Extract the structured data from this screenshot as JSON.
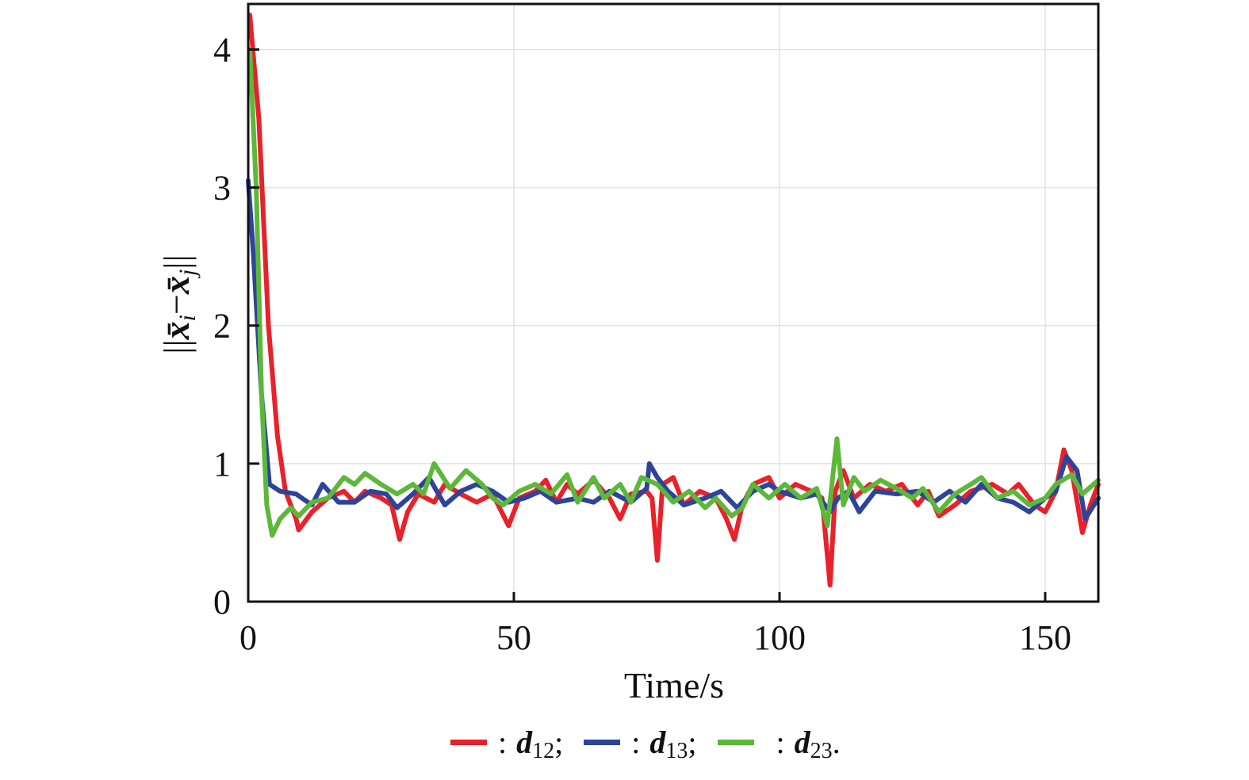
{
  "chart_data": {
    "type": "line",
    "xlabel": "Time/s",
    "ylabel": {
      "prefix": "||",
      "var_i": "x̄",
      "sub_i": "i",
      "minus": "−",
      "var_j": "x̄",
      "sub_j": "j",
      "suffix": "||"
    },
    "xlim": [
      0,
      160
    ],
    "ylim": [
      0,
      4.33
    ],
    "xticks": [
      0,
      50,
      100,
      150
    ],
    "yticks": [
      0,
      1,
      2,
      3,
      4
    ],
    "grid": true,
    "legend_position": "bottom",
    "series": [
      {
        "name": "d12",
        "label": "d",
        "sub": "12",
        "sep": ";",
        "color": "#e8212a",
        "points": [
          [
            0.3,
            4.25
          ],
          [
            2,
            3.5
          ],
          [
            3.8,
            2.0
          ],
          [
            5.5,
            1.2
          ],
          [
            7,
            0.8
          ],
          [
            9,
            0.6
          ],
          [
            9.5,
            0.52
          ],
          [
            12,
            0.65
          ],
          [
            15,
            0.75
          ],
          [
            18,
            0.8
          ],
          [
            20,
            0.72
          ],
          [
            22,
            0.8
          ],
          [
            25,
            0.75
          ],
          [
            27,
            0.7
          ],
          [
            28.5,
            0.45
          ],
          [
            30,
            0.65
          ],
          [
            32,
            0.78
          ],
          [
            35,
            0.72
          ],
          [
            37,
            0.85
          ],
          [
            40,
            0.78
          ],
          [
            43,
            0.72
          ],
          [
            46,
            0.78
          ],
          [
            49,
            0.55
          ],
          [
            51,
            0.75
          ],
          [
            54,
            0.8
          ],
          [
            56,
            0.88
          ],
          [
            58,
            0.72
          ],
          [
            60,
            0.85
          ],
          [
            62,
            0.78
          ],
          [
            65,
            0.88
          ],
          [
            68,
            0.75
          ],
          [
            70,
            0.6
          ],
          [
            72,
            0.78
          ],
          [
            75,
            0.8
          ],
          [
            76,
            0.75
          ],
          [
            77,
            0.3
          ],
          [
            78,
            0.85
          ],
          [
            80,
            0.9
          ],
          [
            82,
            0.7
          ],
          [
            85,
            0.8
          ],
          [
            88,
            0.75
          ],
          [
            90,
            0.6
          ],
          [
            91.5,
            0.45
          ],
          [
            93,
            0.7
          ],
          [
            95,
            0.85
          ],
          [
            98,
            0.9
          ],
          [
            100,
            0.75
          ],
          [
            103,
            0.85
          ],
          [
            106,
            0.8
          ],
          [
            108,
            0.75
          ],
          [
            109.5,
            0.12
          ],
          [
            110.5,
            0.8
          ],
          [
            112,
            0.95
          ],
          [
            114,
            0.75
          ],
          [
            117,
            0.85
          ],
          [
            120,
            0.8
          ],
          [
            123,
            0.85
          ],
          [
            126,
            0.7
          ],
          [
            128,
            0.8
          ],
          [
            130,
            0.62
          ],
          [
            133,
            0.7
          ],
          [
            136,
            0.8
          ],
          [
            140,
            0.85
          ],
          [
            143,
            0.78
          ],
          [
            145,
            0.85
          ],
          [
            148,
            0.7
          ],
          [
            150,
            0.65
          ],
          [
            152,
            0.8
          ],
          [
            153.5,
            1.1
          ],
          [
            155,
            0.95
          ],
          [
            157,
            0.5
          ],
          [
            158.5,
            0.7
          ],
          [
            160,
            0.85
          ]
        ]
      },
      {
        "name": "d13",
        "label": "d",
        "sub": "13",
        "sep": ";",
        "color": "#2d449a",
        "points": [
          [
            0,
            3.05
          ],
          [
            1,
            2.5
          ],
          [
            2.5,
            1.5
          ],
          [
            4,
            0.85
          ],
          [
            6,
            0.8
          ],
          [
            9,
            0.78
          ],
          [
            12,
            0.7
          ],
          [
            14,
            0.85
          ],
          [
            17,
            0.72
          ],
          [
            20,
            0.72
          ],
          [
            23,
            0.8
          ],
          [
            26,
            0.78
          ],
          [
            28,
            0.68
          ],
          [
            31,
            0.78
          ],
          [
            34,
            0.9
          ],
          [
            37,
            0.7
          ],
          [
            40,
            0.8
          ],
          [
            43,
            0.85
          ],
          [
            46,
            0.8
          ],
          [
            49,
            0.72
          ],
          [
            52,
            0.75
          ],
          [
            55,
            0.8
          ],
          [
            58,
            0.72
          ],
          [
            62,
            0.75
          ],
          [
            65,
            0.72
          ],
          [
            68,
            0.8
          ],
          [
            72,
            0.72
          ],
          [
            75,
            0.82
          ],
          [
            75.5,
            1.0
          ],
          [
            77,
            0.9
          ],
          [
            79,
            0.8
          ],
          [
            82,
            0.7
          ],
          [
            86,
            0.75
          ],
          [
            89,
            0.8
          ],
          [
            92,
            0.68
          ],
          [
            95,
            0.8
          ],
          [
            98,
            0.85
          ],
          [
            100,
            0.8
          ],
          [
            104,
            0.75
          ],
          [
            107,
            0.78
          ],
          [
            109.5,
            0.65
          ],
          [
            111,
            0.75
          ],
          [
            113,
            0.8
          ],
          [
            115,
            0.65
          ],
          [
            118,
            0.8
          ],
          [
            122,
            0.78
          ],
          [
            126,
            0.8
          ],
          [
            129,
            0.72
          ],
          [
            132,
            0.8
          ],
          [
            135,
            0.72
          ],
          [
            138,
            0.85
          ],
          [
            141,
            0.75
          ],
          [
            144,
            0.72
          ],
          [
            147,
            0.65
          ],
          [
            150,
            0.75
          ],
          [
            152,
            0.8
          ],
          [
            154,
            1.05
          ],
          [
            156,
            0.95
          ],
          [
            157.5,
            0.6
          ],
          [
            160,
            0.75
          ]
        ]
      },
      {
        "name": "d23",
        "label": "d",
        "sub": "23",
        "sep": ".",
        "color": "#5db83a",
        "points": [
          [
            0.3,
            4.0
          ],
          [
            1.5,
            3.0
          ],
          [
            2.5,
            1.5
          ],
          [
            3.5,
            0.7
          ],
          [
            4.5,
            0.48
          ],
          [
            6,
            0.6
          ],
          [
            8,
            0.68
          ],
          [
            9.5,
            0.62
          ],
          [
            12,
            0.72
          ],
          [
            15,
            0.75
          ],
          [
            18,
            0.9
          ],
          [
            20,
            0.85
          ],
          [
            22,
            0.93
          ],
          [
            25,
            0.85
          ],
          [
            28,
            0.78
          ],
          [
            31,
            0.85
          ],
          [
            33,
            0.78
          ],
          [
            35,
            1.0
          ],
          [
            38,
            0.82
          ],
          [
            41,
            0.95
          ],
          [
            44,
            0.85
          ],
          [
            46,
            0.75
          ],
          [
            48,
            0.7
          ],
          [
            51,
            0.8
          ],
          [
            54,
            0.85
          ],
          [
            57,
            0.78
          ],
          [
            60,
            0.92
          ],
          [
            62,
            0.72
          ],
          [
            65,
            0.9
          ],
          [
            67,
            0.75
          ],
          [
            70,
            0.85
          ],
          [
            72,
            0.72
          ],
          [
            74,
            0.9
          ],
          [
            77,
            0.85
          ],
          [
            80,
            0.72
          ],
          [
            83,
            0.8
          ],
          [
            86,
            0.68
          ],
          [
            88,
            0.75
          ],
          [
            91,
            0.62
          ],
          [
            93,
            0.68
          ],
          [
            95,
            0.85
          ],
          [
            98,
            0.75
          ],
          [
            101,
            0.85
          ],
          [
            104,
            0.75
          ],
          [
            107,
            0.82
          ],
          [
            109,
            0.55
          ],
          [
            110,
            0.9
          ],
          [
            110.8,
            1.18
          ],
          [
            112,
            0.7
          ],
          [
            114,
            0.9
          ],
          [
            116,
            0.8
          ],
          [
            119,
            0.88
          ],
          [
            122,
            0.82
          ],
          [
            125,
            0.75
          ],
          [
            127,
            0.82
          ],
          [
            130,
            0.65
          ],
          [
            133,
            0.78
          ],
          [
            136,
            0.85
          ],
          [
            138,
            0.9
          ],
          [
            141,
            0.75
          ],
          [
            144,
            0.8
          ],
          [
            147,
            0.7
          ],
          [
            150,
            0.75
          ],
          [
            152,
            0.85
          ],
          [
            155,
            0.92
          ],
          [
            157,
            0.78
          ],
          [
            160,
            0.88
          ]
        ]
      }
    ]
  }
}
